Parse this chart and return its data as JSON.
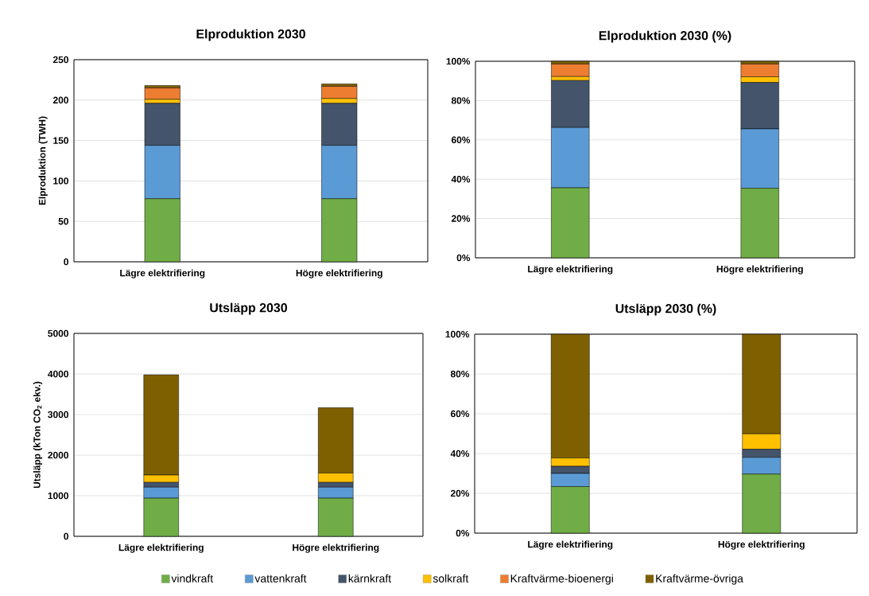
{
  "chart_data": [
    {
      "type": "bar",
      "stacked": true,
      "title": "Elproduktion 2030",
      "ylabel": "Elproduktion (TWH)",
      "categories": [
        "Lägre elektrifiering",
        "Högre elektrifiering"
      ],
      "ylim": [
        0,
        250
      ],
      "yticks": [
        0,
        50,
        100,
        150,
        200,
        250
      ],
      "grid": "y",
      "series": [
        {
          "color": "#70ad47",
          "values": [
            78,
            78
          ]
        },
        {
          "color": "#5b9bd5",
          "values": [
            66,
            66
          ]
        },
        {
          "color": "#44546a",
          "values": [
            52,
            52
          ]
        },
        {
          "color": "#ffc000",
          "values": [
            5,
            6
          ]
        },
        {
          "color": "#ed7d31",
          "values": [
            14,
            15
          ]
        },
        {
          "color": "#7f6000",
          "values": [
            3,
            3
          ]
        }
      ]
    },
    {
      "type": "bar",
      "stacked": true,
      "title": "Elproduktion 2030 (%)",
      "categories": [
        "Lägre elektrifiering",
        "Högre elektrifiering"
      ],
      "ylim": [
        0,
        100
      ],
      "yticks": [
        {
          "value": 0,
          "label": "0%"
        },
        {
          "value": 20,
          "label": "20%"
        },
        {
          "value": 40,
          "label": "40%"
        },
        {
          "value": 60,
          "label": "60%"
        },
        {
          "value": 80,
          "label": "80%"
        },
        {
          "value": 100,
          "label": "100%"
        }
      ],
      "grid": "y",
      "series": [
        {
          "color": "#70ad47",
          "values": [
            35.6,
            35.4
          ]
        },
        {
          "color": "#5b9bd5",
          "values": [
            30.7,
            30.2
          ]
        },
        {
          "color": "#44546a",
          "values": [
            23.9,
            23.6
          ]
        },
        {
          "color": "#ffc000",
          "values": [
            2,
            2.9
          ]
        },
        {
          "color": "#ed7d31",
          "values": [
            6.4,
            6.5
          ]
        },
        {
          "color": "#7f6000",
          "values": [
            1.4,
            1.4
          ]
        }
      ]
    },
    {
      "type": "bar",
      "stacked": true,
      "title": "Utsläpp 2030",
      "ylabel": "Utsläpp (kTon CO$_{2}$ ekv.)",
      "categories": [
        "Lägre elektrifiering",
        "Högre elektrifiering"
      ],
      "ylim": [
        0,
        5000
      ],
      "yticks": [
        0,
        1000,
        2000,
        3000,
        4000,
        5000
      ],
      "grid": "y",
      "series": [
        {
          "color": "#70ad47",
          "values": [
            940,
            940
          ]
        },
        {
          "color": "#5b9bd5",
          "values": [
            270,
            270
          ]
        },
        {
          "color": "#44546a",
          "values": [
            120,
            120
          ]
        },
        {
          "color": "#ffc000",
          "values": [
            180,
            230
          ]
        },
        {
          "color": "#ed7d31",
          "values": [
            0,
            0
          ]
        },
        {
          "color": "#7f6000",
          "values": [
            2470,
            1610
          ]
        }
      ]
    },
    {
      "type": "bar",
      "stacked": true,
      "title": "Utsläpp 2030 (%)",
      "categories": [
        "Lägre elektrifiering",
        "Högre elektrifiering"
      ],
      "ylim": [
        0,
        100
      ],
      "yticks": [
        {
          "value": 0,
          "label": "0%"
        },
        {
          "value": 20,
          "label": "20%"
        },
        {
          "value": 40,
          "label": "40%"
        },
        {
          "value": 60,
          "label": "60%"
        },
        {
          "value": 80,
          "label": "80%"
        },
        {
          "value": 100,
          "label": "100%"
        }
      ],
      "grid": "y",
      "legend": "bottom",
      "series": [
        {
          "name": "vindkraft",
          "color": "#70ad47",
          "values": [
            23.4,
            29.7
          ]
        },
        {
          "name": "vattenkraft",
          "color": "#5b9bd5",
          "values": [
            6.6,
            8.4
          ]
        },
        {
          "name": "kärnkraft",
          "color": "#44546a",
          "values": [
            3.6,
            4.1
          ]
        },
        {
          "name": "solkraft",
          "color": "#ffc000",
          "values": [
            4.2,
            7.7
          ]
        },
        {
          "name": "Kraftvärme-bioenergi",
          "color": "#ed7d31",
          "values": [
            0,
            0
          ]
        },
        {
          "name": "Kraftvärme-övriga",
          "color": "#7f6000",
          "values": [
            62.2,
            50.1
          ]
        }
      ]
    }
  ]
}
